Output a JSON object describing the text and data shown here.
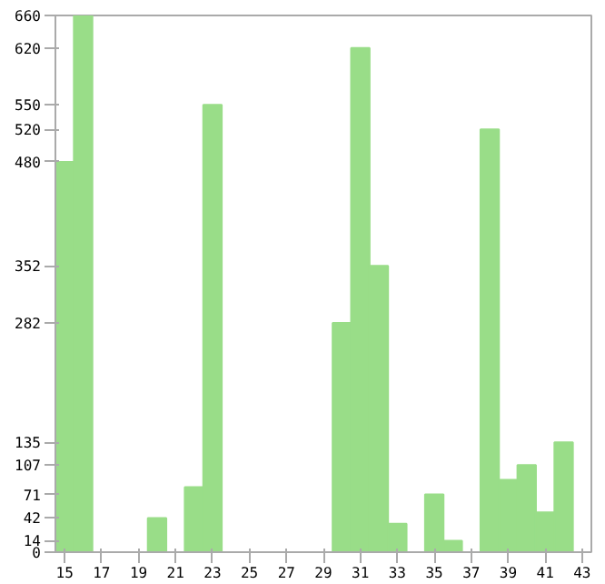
{
  "chart_data": {
    "type": "bar",
    "categories": [
      "15",
      null,
      "17",
      null,
      "19",
      null,
      "21",
      null,
      "23",
      null,
      "25",
      null,
      "27",
      null,
      "29",
      null,
      "31",
      null,
      "33",
      null,
      "35",
      null,
      "37",
      null,
      "39",
      null,
      "41",
      null,
      "43"
    ],
    "values": [
      480,
      660,
      0,
      0,
      0,
      42,
      0,
      80,
      550,
      0,
      0,
      0,
      0,
      0,
      0,
      282,
      620,
      352,
      35,
      0,
      71,
      14,
      0,
      520,
      89,
      107,
      49,
      135,
      0
    ],
    "color": "#99dd88",
    "ylim": [
      0,
      660
    ],
    "yticks": [
      0,
      14,
      42,
      71,
      107,
      135,
      282,
      352,
      480,
      520,
      550,
      620,
      660
    ],
    "grid": false
  }
}
